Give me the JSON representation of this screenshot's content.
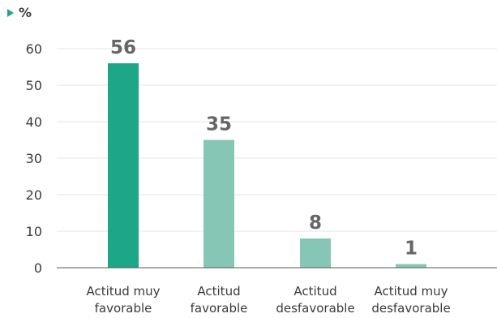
{
  "chart_data": {
    "type": "bar",
    "unit_label": "%",
    "categories": [
      [
        "Actitud muy",
        "favorable"
      ],
      [
        "Actitud",
        "favorable"
      ],
      [
        "Actitud",
        "desfavorable"
      ],
      [
        "Actitud muy",
        "desfavorable"
      ]
    ],
    "values": [
      56,
      35,
      8,
      1
    ],
    "data_labels": [
      "56",
      "35",
      "8",
      "1"
    ],
    "yticks": [
      "0",
      "10",
      "20",
      "30",
      "40",
      "50",
      "60"
    ],
    "ylim": [
      0,
      60
    ],
    "grid": true,
    "colors": {
      "bars": [
        "#1ea689",
        "#86c6b4",
        "#86c6b4",
        "#86c6b4"
      ],
      "accent": "#1ea689",
      "grid": "#e5e5e5",
      "axis": "#555555",
      "text": "#3a3a3a",
      "value_label": "#666666"
    }
  }
}
